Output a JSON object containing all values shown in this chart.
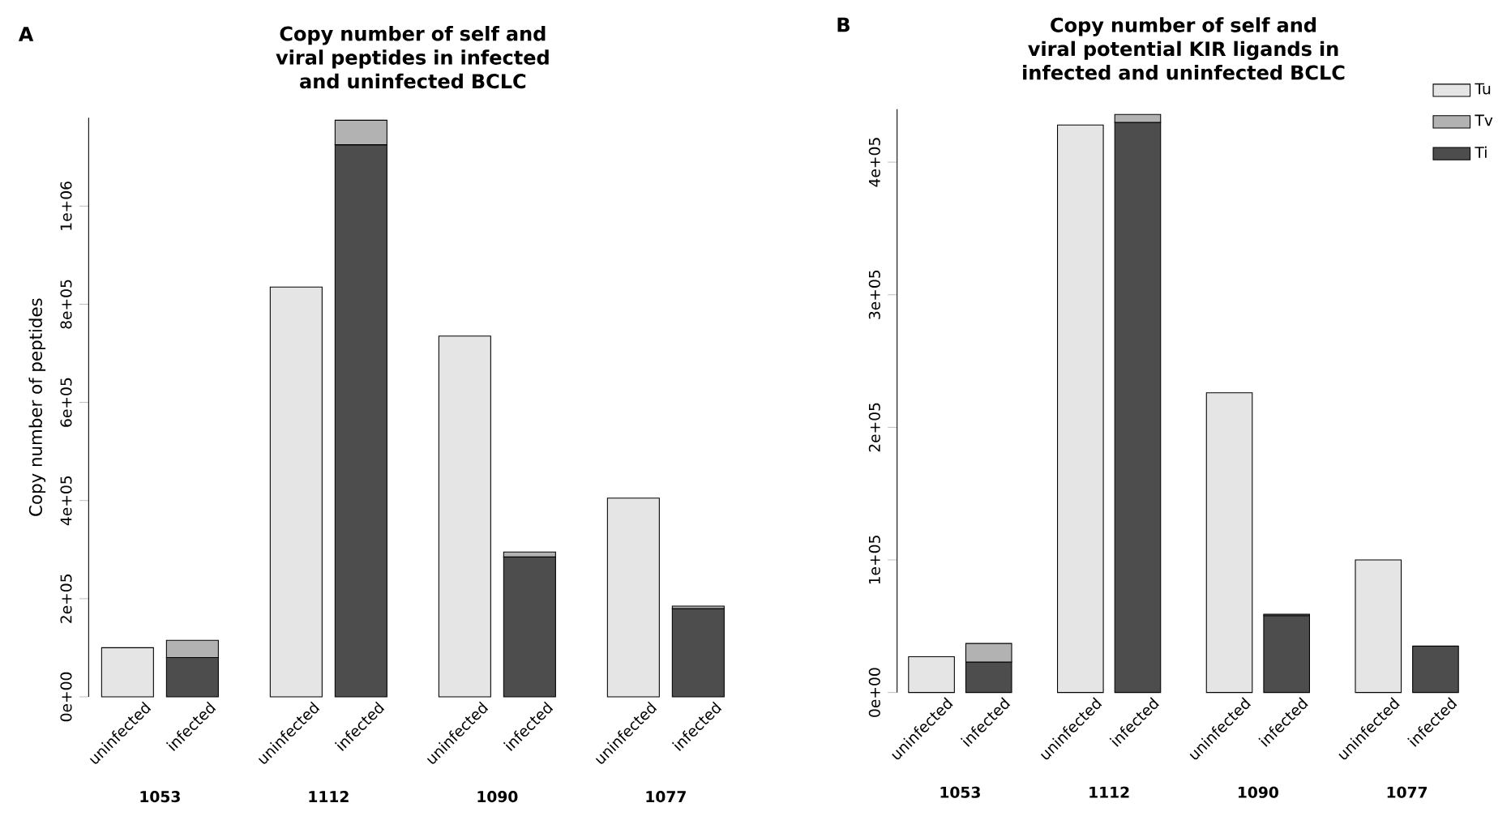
{
  "chart_data": [
    {
      "type": "bar",
      "title": "Copy number of self and viral peptides in infected and uninfected BCLC",
      "ylabel": "Copy number of peptides",
      "categories": [
        "uninfected",
        "infected",
        "uninfected",
        "infected",
        "uninfected",
        "infected",
        "uninfected",
        "infected"
      ],
      "stacked": true,
      "legend": false,
      "series": [
        {
          "color": "#4d4d4d",
          "values": [
            null,
            80000,
            null,
            1125000,
            null,
            285000,
            null,
            180000
          ]
        },
        {
          "color": "#b2b2b2",
          "values": [
            null,
            35000,
            null,
            50000,
            null,
            10000,
            null,
            5000
          ]
        },
        {
          "color": "#e5e5e5",
          "values": [
            100000,
            null,
            835000,
            null,
            735000,
            null,
            405000,
            null
          ]
        }
      ],
      "ylim": [
        0,
        1180000
      ],
      "yticks": [
        {
          "value": 0,
          "label": "0e+00"
        },
        {
          "value": 200000,
          "label": "2e+05"
        },
        {
          "value": 400000,
          "label": "4e+05"
        },
        {
          "value": 600000,
          "label": "6e+05"
        },
        {
          "value": 800000,
          "label": "8e+05"
        },
        {
          "value": 1000000,
          "label": "1e+06"
        }
      ],
      "annotations": [
        "A",
        "1053",
        "1112",
        "1090",
        "1077"
      ]
    },
    {
      "type": "bar",
      "title": "Copy number of self and viral potential KIR ligands in infected and uninfected BCLC",
      "categories": [
        "uninfected",
        "infected",
        "uninfected",
        "infected",
        "uninfected",
        "infected",
        "uninfected",
        "infected"
      ],
      "stacked": true,
      "legend": "top right",
      "series": [
        {
          "name": "Ti",
          "color": "#4d4d4d",
          "values": [
            null,
            23000,
            null,
            430000,
            null,
            58000,
            null,
            35000
          ]
        },
        {
          "name": "Tv",
          "color": "#b2b2b2",
          "values": [
            null,
            14000,
            null,
            6000,
            null,
            1000,
            null,
            null
          ]
        },
        {
          "name": "Tu",
          "color": "#e5e5e5",
          "values": [
            27000,
            null,
            428000,
            null,
            226000,
            null,
            100000,
            null
          ]
        }
      ],
      "ylim": [
        0,
        440000
      ],
      "yticks": [
        {
          "value": 0,
          "label": "0e+00"
        },
        {
          "value": 100000,
          "label": "1e+05"
        },
        {
          "value": 200000,
          "label": "2e+05"
        },
        {
          "value": 300000,
          "label": "3e+05"
        },
        {
          "value": 400000,
          "label": "4e+05"
        }
      ],
      "annotations": [
        "B",
        "1053",
        "1112",
        "1090",
        "1077"
      ]
    }
  ]
}
